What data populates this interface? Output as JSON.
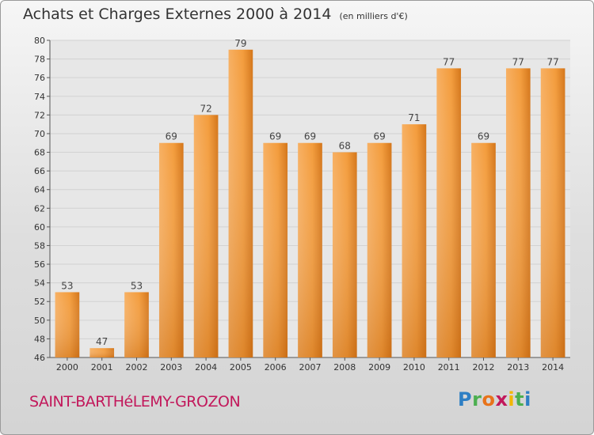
{
  "header": {
    "title": "Achats et Charges Externes 2000 à 2014",
    "unit": "(en milliers d'€)"
  },
  "footer": {
    "commune": "SAINT-BARTHéLEMY-GROZON",
    "logo": {
      "letters": [
        "P",
        "r",
        "o",
        "x",
        "i",
        "t",
        "i"
      ],
      "colors": [
        "#2e7fc4",
        "#4caf50",
        "#e8731a",
        "#c2185b",
        "#f2b705",
        "#4caf50",
        "#2e7fc4"
      ]
    }
  },
  "colors": {
    "bar": "#f39c3c",
    "bar_light": "#f7b063",
    "bar_dark": "#d4761a",
    "plot_bg": "#e7e7e7",
    "grid": "#d2d2d2"
  },
  "chart_data": {
    "type": "bar",
    "categories": [
      "2000",
      "2001",
      "2002",
      "2003",
      "2004",
      "2005",
      "2006",
      "2007",
      "2008",
      "2009",
      "2010",
      "2011",
      "2012",
      "2013",
      "2014"
    ],
    "values": [
      53,
      47,
      53,
      69,
      72,
      79,
      69,
      69,
      68,
      69,
      71,
      77,
      69,
      77,
      77
    ],
    "ylim": [
      46,
      80
    ],
    "yticks": [
      46,
      48,
      50,
      52,
      54,
      56,
      58,
      60,
      62,
      64,
      66,
      68,
      70,
      72,
      74,
      76,
      78,
      80
    ],
    "grid": true,
    "data_labels": true
  }
}
